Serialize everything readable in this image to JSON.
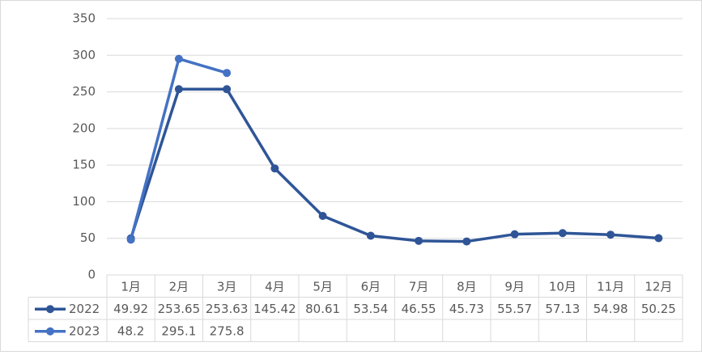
{
  "chart_data": {
    "type": "line",
    "categories": [
      "1月",
      "2月",
      "3月",
      "4月",
      "5月",
      "6月",
      "7月",
      "8月",
      "9月",
      "10月",
      "11月",
      "12月"
    ],
    "series": [
      {
        "name": "2022",
        "color": "#2f5597",
        "values": [
          49.92,
          253.65,
          253.63,
          145.42,
          80.61,
          53.54,
          46.55,
          45.73,
          55.57,
          57.13,
          54.98,
          50.25
        ]
      },
      {
        "name": "2023",
        "color": "#4472c4",
        "values": [
          48.2,
          295.1,
          275.8,
          null,
          null,
          null,
          null,
          null,
          null,
          null,
          null,
          null
        ]
      }
    ],
    "ylim": [
      0,
      350
    ],
    "yticks": [
      0,
      50,
      100,
      150,
      200,
      250,
      300,
      350
    ],
    "grid": true,
    "data_table": true
  }
}
